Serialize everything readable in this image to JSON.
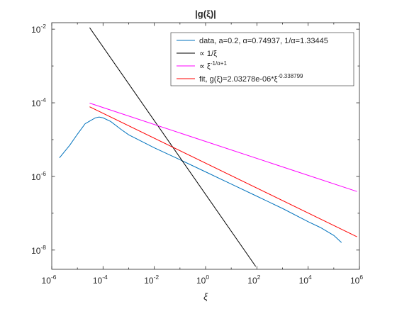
{
  "chart_data": {
    "type": "line",
    "title": "|g(ξ)|",
    "xlabel": "ξ",
    "ylabel": "",
    "xscale": "log",
    "yscale": "log",
    "xlim": [
      1e-06,
      1000000.0
    ],
    "ylim": [
      3e-09,
      0.015
    ],
    "grid": false,
    "legend_location": "top-right",
    "x_ticks": [
      {
        "mantissa": "10",
        "exponent": "-6",
        "value": 1e-06
      },
      {
        "mantissa": "10",
        "exponent": "-4",
        "value": 0.0001
      },
      {
        "mantissa": "10",
        "exponent": "-2",
        "value": 0.01
      },
      {
        "mantissa": "10",
        "exponent": "0",
        "value": 1
      },
      {
        "mantissa": "10",
        "exponent": "2",
        "value": 100
      },
      {
        "mantissa": "10",
        "exponent": "4",
        "value": 10000.0
      },
      {
        "mantissa": "10",
        "exponent": "6",
        "value": 1000000.0
      }
    ],
    "y_ticks": [
      {
        "mantissa": "10",
        "exponent": "-8",
        "value": 1e-08
      },
      {
        "mantissa": "10",
        "exponent": "-6",
        "value": 1e-06
      },
      {
        "mantissa": "10",
        "exponent": "-4",
        "value": 0.0001
      },
      {
        "mantissa": "10",
        "exponent": "-2",
        "value": 0.01
      }
    ],
    "series": [
      {
        "legend": {
          "text": "data, a=0.2, α=0.74937, 1/α=1.33445",
          "superscript": ""
        },
        "color": "#0072BD",
        "x": [
          2e-06,
          5e-06,
          1e-05,
          2e-05,
          5e-05,
          7e-05,
          0.0001,
          0.0002,
          0.0005,
          0.001,
          0.01,
          0.1,
          1,
          10,
          100,
          1000,
          10000.0,
          30000.0,
          100000.0,
          200000.0
        ],
        "y": [
          3.2e-06,
          7e-06,
          1.4e-05,
          2.7e-05,
          3.9e-05,
          4.1e-05,
          3.9e-05,
          3.1e-05,
          1.9e-05,
          1.35e-05,
          6e-06,
          2.85e-06,
          1.33e-06,
          6.2e-07,
          2.9e-07,
          1.35e-07,
          5.9e-08,
          4.1e-08,
          2.5e-08,
          1.6e-08
        ]
      },
      {
        "legend": {
          "text": "∝ 1/ξ",
          "superscript": ""
        },
        "color": "#000000",
        "x": [
          3e-05,
          90
        ],
        "y": [
          0.011,
          3.6e-09
        ]
      },
      {
        "legend": {
          "text": "∝ ξ",
          "superscript": "-1/α+1"
        },
        "color": "#FF00FF",
        "x": [
          3e-05,
          800000.0
        ],
        "y": [
          9.8e-05,
          3.9e-07
        ]
      },
      {
        "legend": {
          "text": "fit, g(ξ)=2.03278e-06*ξ",
          "superscript": "-0.338799"
        },
        "color": "#FF0000",
        "x": [
          3e-05,
          800000.0
        ],
        "y": [
          7.8e-05,
          2.3e-08
        ]
      }
    ]
  }
}
